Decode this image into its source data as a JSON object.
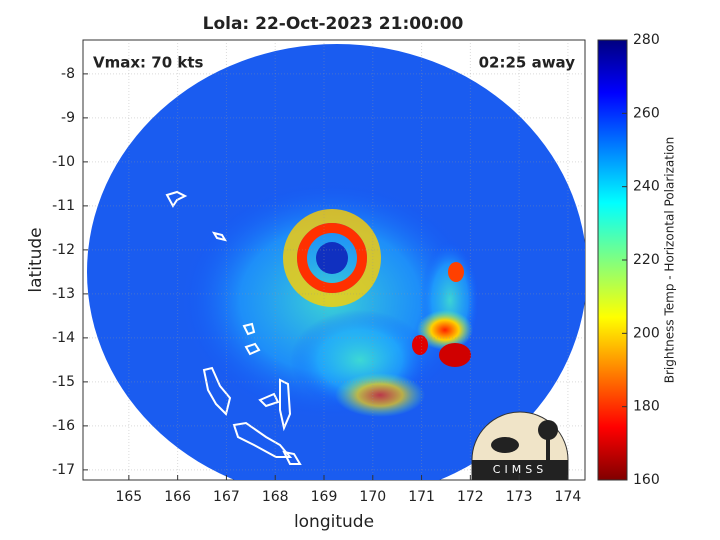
{
  "chart_data": {
    "type": "map",
    "title": "Lola: 22-Oct-2023 21:00:00",
    "annotations": [
      "Vmax: 70 kts",
      "02:25 away"
    ],
    "x_label": "longitude",
    "y_label": "latitude",
    "xlim": [
      164.06,
      174.35
    ],
    "xticks": [
      165,
      166,
      167,
      168,
      169,
      170,
      171,
      172,
      173,
      174
    ],
    "ylim": [
      -17.23,
      -7.23
    ],
    "yticks": [
      -17,
      -16,
      -15,
      -14,
      -13,
      -12,
      -11,
      -10,
      -9,
      -8
    ],
    "grid": true,
    "colorbar": {
      "label": "Brightness Temp - Horizontal Polarization",
      "lim": [
        160,
        280
      ],
      "ticks": [
        160,
        180,
        200,
        220,
        240,
        260,
        280
      ]
    },
    "logo": "CIMSS"
  }
}
